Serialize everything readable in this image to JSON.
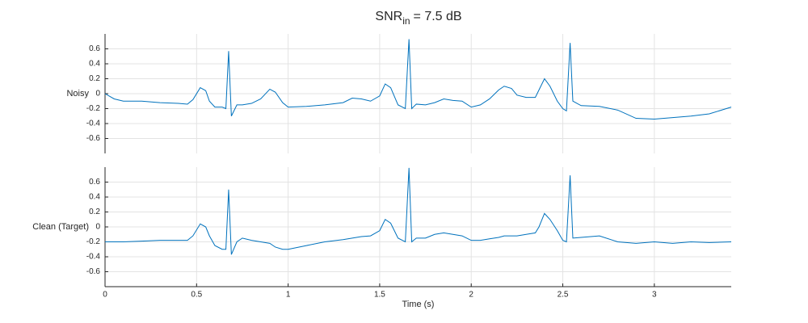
{
  "chart_data": [
    {
      "type": "line",
      "title": "SNR",
      "title_subscript": "in",
      "title_suffix": "= 7.5 dB",
      "ylabel": "Noisy",
      "x": [
        0,
        0.05,
        0.1,
        0.2,
        0.3,
        0.4,
        0.45,
        0.48,
        0.52,
        0.55,
        0.57,
        0.6,
        0.64,
        0.66,
        0.675,
        0.69,
        0.72,
        0.75,
        0.8,
        0.85,
        0.9,
        0.93,
        0.97,
        1.0,
        1.1,
        1.2,
        1.3,
        1.35,
        1.4,
        1.45,
        1.5,
        1.53,
        1.56,
        1.6,
        1.64,
        1.66,
        1.675,
        1.7,
        1.75,
        1.8,
        1.85,
        1.9,
        1.95,
        2.0,
        2.05,
        2.1,
        2.15,
        2.18,
        2.22,
        2.25,
        2.3,
        2.35,
        2.37,
        2.4,
        2.43,
        2.47,
        2.5,
        2.52,
        2.54,
        2.555,
        2.6,
        2.7,
        2.8,
        2.9,
        3.0,
        3.1,
        3.2,
        3.3,
        3.42
      ],
      "values": [
        0,
        -0.07,
        -0.1,
        -0.1,
        -0.12,
        -0.13,
        -0.14,
        -0.08,
        0.08,
        0.04,
        -0.1,
        -0.18,
        -0.18,
        -0.2,
        0.57,
        -0.3,
        -0.15,
        -0.15,
        -0.13,
        -0.07,
        0.06,
        0.02,
        -0.12,
        -0.18,
        -0.17,
        -0.15,
        -0.12,
        -0.06,
        -0.07,
        -0.1,
        -0.03,
        0.13,
        0.08,
        -0.15,
        -0.2,
        0.73,
        -0.2,
        -0.14,
        -0.15,
        -0.12,
        -0.07,
        -0.09,
        -0.1,
        -0.18,
        -0.15,
        -0.07,
        0.05,
        0.1,
        0.07,
        -0.02,
        -0.05,
        -0.05,
        0.05,
        0.2,
        0.1,
        -0.1,
        -0.2,
        -0.23,
        0.68,
        -0.1,
        -0.16,
        -0.17,
        -0.22,
        -0.33,
        -0.34,
        -0.32,
        -0.3,
        -0.27,
        -0.18
      ],
      "color": "#0072bd",
      "xlim": [
        0,
        3.42
      ],
      "xticks": [
        0,
        0.5,
        1,
        1.5,
        2,
        2.5,
        3
      ],
      "xtick_labels": false,
      "ylim": [
        -0.8,
        0.8
      ],
      "yticks": [
        -0.6,
        -0.4,
        -0.2,
        0,
        0.2,
        0.4,
        0.6
      ],
      "grid": true
    },
    {
      "type": "line",
      "ylabel": "Clean (Target)",
      "xlabel": "Time (s)",
      "x": [
        0,
        0.05,
        0.1,
        0.2,
        0.3,
        0.4,
        0.45,
        0.48,
        0.52,
        0.55,
        0.57,
        0.6,
        0.64,
        0.66,
        0.675,
        0.69,
        0.72,
        0.75,
        0.8,
        0.85,
        0.9,
        0.93,
        0.97,
        1.0,
        1.1,
        1.2,
        1.3,
        1.35,
        1.4,
        1.45,
        1.5,
        1.53,
        1.56,
        1.6,
        1.64,
        1.66,
        1.675,
        1.7,
        1.75,
        1.8,
        1.85,
        1.9,
        1.95,
        2.0,
        2.05,
        2.1,
        2.15,
        2.18,
        2.22,
        2.25,
        2.3,
        2.35,
        2.37,
        2.4,
        2.43,
        2.47,
        2.5,
        2.52,
        2.54,
        2.555,
        2.6,
        2.7,
        2.8,
        2.9,
        3.0,
        3.1,
        3.2,
        3.3,
        3.42
      ],
      "values": [
        -0.2,
        -0.2,
        -0.2,
        -0.19,
        -0.18,
        -0.18,
        -0.18,
        -0.12,
        0.04,
        0,
        -0.12,
        -0.25,
        -0.3,
        -0.3,
        0.5,
        -0.37,
        -0.2,
        -0.15,
        -0.18,
        -0.2,
        -0.22,
        -0.27,
        -0.3,
        -0.3,
        -0.25,
        -0.2,
        -0.17,
        -0.15,
        -0.13,
        -0.12,
        -0.05,
        0.1,
        0.05,
        -0.15,
        -0.2,
        0.79,
        -0.2,
        -0.15,
        -0.15,
        -0.1,
        -0.08,
        -0.1,
        -0.12,
        -0.18,
        -0.18,
        -0.16,
        -0.14,
        -0.12,
        -0.12,
        -0.12,
        -0.1,
        -0.08,
        0,
        0.18,
        0.1,
        -0.05,
        -0.18,
        -0.2,
        0.69,
        -0.15,
        -0.14,
        -0.12,
        -0.2,
        -0.22,
        -0.2,
        -0.22,
        -0.2,
        -0.21,
        -0.2
      ],
      "color": "#0072bd",
      "xlim": [
        0,
        3.42
      ],
      "xticks": [
        0,
        0.5,
        1,
        1.5,
        2,
        2.5,
        3
      ],
      "xtick_labels": true,
      "ylim": [
        -0.8,
        0.8
      ],
      "yticks": [
        -0.6,
        -0.4,
        -0.2,
        0,
        0.2,
        0.4,
        0.6
      ],
      "grid": true
    }
  ]
}
